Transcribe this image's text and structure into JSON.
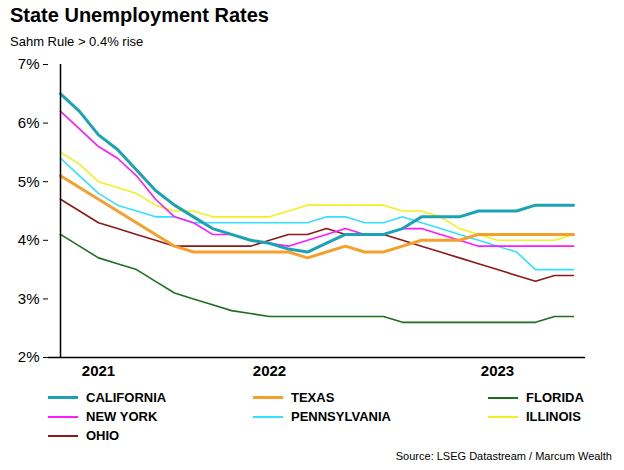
{
  "chart_data": {
    "type": "line",
    "title": "State Unemployment Rates",
    "subtitle": "Sahm Rule > 0.4% rise",
    "source": "Source: LSEG Datastream / Marcum Wealth",
    "legend": "bottom",
    "grid": false,
    "categories": [
      null,
      null,
      "2021",
      null,
      null,
      null,
      null,
      null,
      null,
      null,
      null,
      "2022",
      null,
      null,
      null,
      null,
      null,
      null,
      null,
      null,
      null,
      null,
      null,
      "2023",
      null,
      null,
      null,
      null
    ],
    "ylim": [
      2,
      7
    ],
    "yticks": [
      {
        "value": 2,
        "label": "2%"
      },
      {
        "value": 3,
        "label": "3%"
      },
      {
        "value": 4,
        "label": "4%"
      },
      {
        "value": 5,
        "label": "5%"
      },
      {
        "value": 6,
        "label": "6%"
      },
      {
        "value": 7,
        "label": "7%"
      }
    ],
    "series": [
      {
        "name": "CALIFORNIA",
        "color": "#1aa3b3",
        "values": [
          6.5,
          6.2,
          5.8,
          5.55,
          5.2,
          4.85,
          4.6,
          4.4,
          4.2,
          4.1,
          4.0,
          3.95,
          3.85,
          3.8,
          3.95,
          4.1,
          4.1,
          4.1,
          4.2,
          4.4,
          4.4,
          4.4,
          4.5,
          4.5,
          4.5,
          4.6,
          4.6,
          4.6
        ]
      },
      {
        "name": "TEXAS",
        "color": "#f5a02c",
        "values": [
          5.1,
          4.9,
          4.7,
          4.5,
          4.3,
          4.1,
          3.9,
          3.8,
          3.8,
          3.8,
          3.8,
          3.8,
          3.8,
          3.7,
          3.8,
          3.9,
          3.8,
          3.8,
          3.9,
          4.0,
          4.0,
          4.0,
          4.1,
          4.1,
          4.1,
          4.1,
          4.1,
          4.1
        ]
      },
      {
        "name": "FLORIDA",
        "color": "#1f6e1f",
        "values": [
          4.1,
          3.9,
          3.7,
          3.6,
          3.5,
          3.3,
          3.1,
          3.0,
          2.9,
          2.8,
          2.75,
          2.7,
          2.7,
          2.7,
          2.7,
          2.7,
          2.7,
          2.7,
          2.6,
          2.6,
          2.6,
          2.6,
          2.6,
          2.6,
          2.6,
          2.6,
          2.7,
          2.7
        ]
      },
      {
        "name": "NEW YORK",
        "color": "#ff1aff",
        "values": [
          6.2,
          5.9,
          5.6,
          5.4,
          5.1,
          4.7,
          4.4,
          4.3,
          4.1,
          4.1,
          4.0,
          3.95,
          3.9,
          4.0,
          4.1,
          4.2,
          4.1,
          4.1,
          4.2,
          4.2,
          4.1,
          4.0,
          3.9,
          3.9,
          3.9,
          3.9,
          3.9,
          3.9
        ]
      },
      {
        "name": "PENNSYLVANIA",
        "color": "#33e0ff",
        "values": [
          5.4,
          5.1,
          4.8,
          4.6,
          4.5,
          4.4,
          4.4,
          4.3,
          4.3,
          4.3,
          4.3,
          4.3,
          4.3,
          4.3,
          4.4,
          4.4,
          4.3,
          4.3,
          4.4,
          4.3,
          4.2,
          4.1,
          4.0,
          3.9,
          3.8,
          3.5,
          3.5,
          3.5
        ]
      },
      {
        "name": "ILLINOIS",
        "color": "#f2f020",
        "values": [
          5.5,
          5.3,
          5.0,
          4.9,
          4.8,
          4.6,
          4.5,
          4.5,
          4.4,
          4.4,
          4.4,
          4.4,
          4.5,
          4.6,
          4.6,
          4.6,
          4.6,
          4.6,
          4.5,
          4.5,
          4.4,
          4.2,
          4.1,
          4.0,
          4.0,
          4.0,
          4.0,
          4.1
        ]
      },
      {
        "name": "OHIO",
        "color": "#8b1a1a",
        "values": [
          4.7,
          4.5,
          4.3,
          4.2,
          4.1,
          4.0,
          3.9,
          3.9,
          3.9,
          3.9,
          3.9,
          4.0,
          4.1,
          4.1,
          4.2,
          4.1,
          4.1,
          4.1,
          4.0,
          3.9,
          3.8,
          3.7,
          3.6,
          3.5,
          3.4,
          3.3,
          3.4,
          3.4
        ]
      }
    ]
  }
}
